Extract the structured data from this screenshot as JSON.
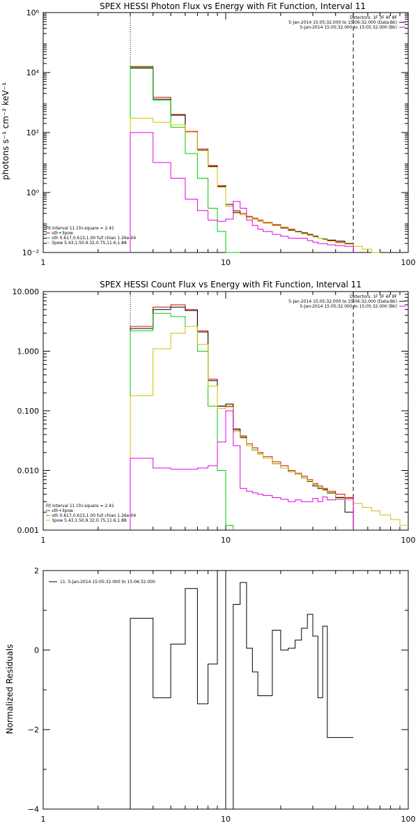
{
  "chart_data": [
    {
      "type": "line",
      "title": "SPEX HESSI Photon Flux vs Energy with Fit Function, Interval 11",
      "ylabel": "photons s⁻¹ cm⁻² keV⁻¹",
      "xscale": "log",
      "yscale": "log",
      "xlim": [
        1,
        100
      ],
      "ylim": [
        0.01,
        1000000
      ],
      "xticks": [
        1,
        10,
        100
      ],
      "xticklabels": [
        "1",
        "10",
        "100"
      ],
      "yticks": [
        0.01,
        1,
        100,
        10000,
        1000000
      ],
      "yticklabels": [
        "10⁻²",
        "10⁰",
        "10²",
        "10⁴",
        "10⁶"
      ],
      "vlines": [
        {
          "x": 3.0,
          "style": "dotted"
        },
        {
          "x": 50.0,
          "style": "dashed"
        }
      ],
      "legend_topright": [
        {
          "text": "Detectors: 1F 3F 4F 8F",
          "color": "#000000"
        },
        {
          "text": "5-Jan-2014 15:05:32.000 to 15:06:32.000 (Data-Bk)",
          "color": "#000000"
        },
        {
          "text": "5-Jan-2014 15:05:32.000 to 15:05:32.000 (Bk)",
          "color": "#e000e0"
        }
      ],
      "legend_bottomleft": [
        {
          "text": "Fit Interval 11    Chi-square = 2.41",
          "color": "#000000"
        },
        {
          "text": "vth+3pow",
          "color": "#e00000"
        },
        {
          "text": "vth 0.617,0.613,1.00  full chian 1.26e-04",
          "color": "#00cc00"
        },
        {
          "text": "3pow 5.43,1.50,9.32,0.75,11.6,1.88",
          "color": "#d0c000"
        }
      ],
      "edges": [
        3.0,
        4.0,
        5.0,
        6.0,
        7.0,
        8.0,
        9.0,
        10.0,
        11.0,
        12.0,
        13.0,
        14.0,
        15.0,
        16.0,
        18.0,
        20.0,
        22.0,
        24.0,
        26.0,
        28.0,
        30.0,
        32.0,
        34.0,
        36.0,
        40.0,
        45.0,
        50.0,
        56.0,
        63.0,
        70.0
      ],
      "series": [
        {
          "name": "vth+3pow",
          "color": "#e00000",
          "values": [
            16000,
            1500,
            400,
            110,
            28,
            8,
            1.7,
            0.35,
            0.25,
            0.2,
            0.16,
            0.14,
            0.12,
            0.1,
            0.085,
            0.07,
            0.06,
            0.05,
            0.045,
            0.04,
            0.035,
            0.03,
            0.027,
            0.025,
            0.022,
            0.02,
            null,
            null,
            null
          ]
        },
        {
          "name": "Data-Bk",
          "color": "#000000",
          "values": [
            14000,
            1300,
            380,
            100,
            26,
            7.5,
            1.6,
            0.4,
            0.22,
            0.18,
            0.15,
            0.13,
            0.11,
            0.095,
            0.08,
            0.065,
            0.055,
            0.05,
            0.045,
            0.04,
            0.035,
            0.03,
            0.028,
            0.026,
            0.024,
            0.02,
            null,
            null,
            null
          ]
        },
        {
          "name": "vth",
          "color": "#00cc00",
          "values": [
            15000,
            1200,
            150,
            20,
            3,
            0.3,
            0.05,
            0.01,
            0.002,
            null,
            null,
            null,
            null,
            null,
            null,
            null,
            null,
            null,
            null,
            null,
            null,
            null,
            null,
            null,
            null,
            null,
            null,
            null,
            null
          ]
        },
        {
          "name": "3pow",
          "color": "#d0c000",
          "values": [
            300,
            220,
            180,
            100,
            25,
            7,
            1.5,
            0.35,
            0.2,
            0.18,
            0.15,
            0.13,
            0.11,
            0.095,
            0.08,
            0.068,
            0.057,
            0.048,
            0.042,
            0.037,
            0.033,
            0.03,
            0.027,
            0.024,
            0.021,
            0.019,
            0.016,
            0.013,
            0.01
          ]
        },
        {
          "name": "Bk",
          "color": "#e000e0",
          "values": [
            100,
            10,
            3,
            0.6,
            0.25,
            0.12,
            0.11,
            0.13,
            0.5,
            0.3,
            0.12,
            0.08,
            0.06,
            0.05,
            0.04,
            0.035,
            0.03,
            0.03,
            0.03,
            0.025,
            0.022,
            0.02,
            0.02,
            0.018,
            0.017,
            0.016,
            null,
            null,
            null
          ]
        }
      ]
    },
    {
      "type": "line",
      "title": "SPEX HESSI Count Flux vs Energy with Fit Function, Interval 11",
      "ylabel": "",
      "xscale": "log",
      "yscale": "log",
      "xlim": [
        1,
        100
      ],
      "ylim": [
        0.001,
        10
      ],
      "xticks": [
        1,
        10,
        100
      ],
      "xticklabels": [
        "1",
        "10",
        "100"
      ],
      "yticks": [
        0.001,
        0.01,
        0.1,
        1,
        10
      ],
      "yticklabels": [
        "0.001",
        "0.010",
        "0.100",
        "1.000",
        "10.000"
      ],
      "vlines": [
        {
          "x": 3.0,
          "style": "dotted"
        },
        {
          "x": 50.0,
          "style": "dashed"
        }
      ],
      "legend_topright": [
        {
          "text": "Detectors: 1F 3F 4F 8F",
          "color": "#000000"
        },
        {
          "text": "5-Jan-2014 15:05:32.000 to 15:06:32.000 (Data-Bk)",
          "color": "#000000"
        },
        {
          "text": "5-Jan-2014 15:05:32.000 to 15:05:32.000 (Bk)",
          "color": "#e000e0"
        }
      ],
      "legend_bottomleft": [
        {
          "text": "Fit Interval 11    Chi-square = 2.41",
          "color": "#000000"
        },
        {
          "text": "vth+3pow",
          "color": "#e00000"
        },
        {
          "text": "vth 0.617,0.613,1.00  full chian 1.26e-04",
          "color": "#00cc00"
        },
        {
          "text": "3pow 5.43,1.50,9.32,0.75,11.6,1.88",
          "color": "#d0c000"
        }
      ],
      "edges": [
        3.0,
        4.0,
        5.0,
        6.0,
        7.0,
        8.0,
        9.0,
        10.0,
        11.0,
        12.0,
        13.0,
        14.0,
        15.0,
        16.0,
        18.0,
        20.0,
        22.0,
        24.0,
        26.0,
        28.0,
        30.0,
        32.0,
        34.0,
        36.0,
        40.0,
        45.0,
        50.0,
        56.0,
        63.0,
        70.0,
        80.0,
        90.0,
        100.0
      ],
      "series": [
        {
          "name": "vth+3pow",
          "color": "#e00000",
          "values": [
            2.6,
            5.5,
            6.0,
            5.0,
            2.2,
            0.34,
            0.12,
            0.12,
            0.05,
            0.038,
            0.028,
            0.024,
            0.02,
            0.017,
            0.014,
            0.012,
            0.01,
            0.009,
            0.008,
            0.007,
            0.006,
            0.0055,
            0.005,
            0.0045,
            0.004,
            0.0035,
            null,
            null,
            null,
            null,
            null,
            null
          ]
        },
        {
          "name": "Data-Bk",
          "color": "#000000",
          "values": [
            2.4,
            5.0,
            5.5,
            4.8,
            2.1,
            0.32,
            0.12,
            0.13,
            0.048,
            0.036,
            0.026,
            0.022,
            0.019,
            0.016,
            0.013,
            0.011,
            0.0095,
            0.0085,
            0.0075,
            0.0065,
            0.0055,
            0.005,
            0.0048,
            0.0042,
            0.0035,
            0.002,
            null,
            null,
            null,
            null,
            null,
            null
          ]
        },
        {
          "name": "vth",
          "color": "#00cc00",
          "values": [
            2.2,
            4.3,
            3.8,
            2.6,
            1.0,
            0.12,
            0.01,
            0.0012,
            null,
            null,
            null,
            null,
            null,
            null,
            null,
            null,
            null,
            null,
            null,
            null,
            null,
            null,
            null,
            null,
            null,
            null,
            null,
            null,
            null,
            null,
            null,
            null
          ]
        },
        {
          "name": "3pow",
          "color": "#d0c000",
          "values": [
            0.18,
            1.1,
            2.0,
            2.6,
            1.3,
            0.26,
            0.11,
            0.115,
            0.045,
            0.035,
            0.026,
            0.022,
            0.019,
            0.016,
            0.013,
            0.011,
            0.0095,
            0.0085,
            0.0075,
            0.0066,
            0.0058,
            0.0052,
            0.0046,
            0.0041,
            0.0036,
            0.0032,
            0.0028,
            0.0024,
            0.0021,
            0.0018,
            0.0015,
            0.0012
          ]
        },
        {
          "name": "Bk",
          "color": "#e000e0",
          "values": [
            0.016,
            0.011,
            0.0105,
            0.0105,
            0.011,
            0.012,
            0.03,
            0.1,
            0.026,
            0.005,
            0.0045,
            0.0042,
            0.004,
            0.0038,
            0.0035,
            0.0033,
            0.003,
            0.0032,
            0.003,
            0.003,
            0.0034,
            0.003,
            0.0036,
            0.0032,
            0.0033,
            0.0034,
            null,
            null,
            null,
            null,
            null,
            null
          ]
        }
      ]
    },
    {
      "type": "line",
      "title": "",
      "ylabel": "Normalized Residuals",
      "xscale": "log",
      "yscale": "linear",
      "xlim": [
        1,
        100
      ],
      "ylim": [
        -4,
        2
      ],
      "xticks": [
        1,
        10,
        100
      ],
      "xticklabels": [
        "1",
        "10",
        "100"
      ],
      "yticks": [
        -4,
        -2,
        0,
        2
      ],
      "yticklabels": [
        "−4",
        "−2",
        "0",
        "2"
      ],
      "legend": "11.  5-Jan-2014 15:05:32.000 to 15:06:32.000",
      "edges": [
        3.0,
        4.0,
        5.0,
        6.0,
        7.0,
        8.0,
        9.0,
        10.0,
        11.0,
        12.0,
        13.0,
        14.0,
        15.0,
        16.0,
        18.0,
        20.0,
        22.0,
        24.0,
        26.0,
        28.0,
        30.0,
        32.0,
        34.0,
        36.0,
        40.0,
        45.0,
        50.0
      ],
      "floor": -4,
      "series": [
        {
          "name": "11",
          "color": "#000000",
          "values": [
            0.8,
            -1.2,
            0.15,
            1.55,
            -1.35,
            -0.35,
            2.0,
            -4.0,
            1.15,
            1.7,
            0.05,
            -0.55,
            -1.15,
            -1.15,
            0.5,
            0.0,
            0.05,
            0.25,
            0.55,
            0.9,
            0.35,
            -1.2,
            0.6,
            -2.2,
            -2.2,
            -2.2
          ]
        }
      ]
    }
  ]
}
